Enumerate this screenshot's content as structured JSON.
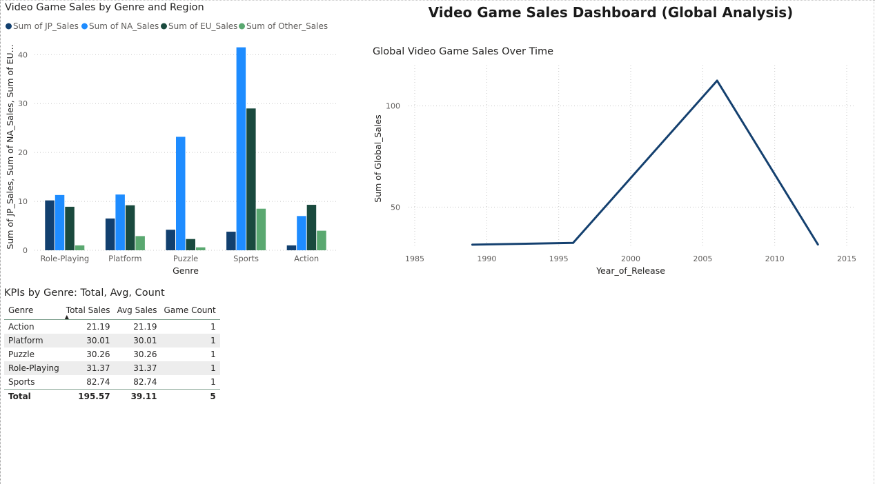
{
  "dashboard": {
    "title": "Video Game Sales Dashboard (Global Analysis)"
  },
  "chart_data": [
    {
      "type": "bar",
      "title": "Video Game Sales by Genre and Region",
      "xlabel": "Genre",
      "ylabel": "Sum of JP_Sales, Sum of NA_Sales, Sum of EU...",
      "categories": [
        "Role-Playing",
        "Platform",
        "Puzzle",
        "Sports",
        "Action"
      ],
      "series": [
        {
          "name": "Sum of JP_Sales",
          "color": "#12406f",
          "values": [
            10.2,
            6.5,
            4.2,
            3.8,
            1.0
          ]
        },
        {
          "name": "Sum of NA_Sales",
          "color": "#1e8cff",
          "values": [
            11.3,
            11.4,
            23.2,
            41.5,
            7.0
          ]
        },
        {
          "name": "Sum of EU_Sales",
          "color": "#1a4a3e",
          "values": [
            8.9,
            9.2,
            2.3,
            29.0,
            9.3
          ]
        },
        {
          "name": "Sum of Other_Sales",
          "color": "#5aa870",
          "values": [
            1.0,
            2.9,
            0.6,
            8.5,
            4.0
          ]
        }
      ],
      "ylim": [
        0,
        43
      ],
      "yticks": [
        0,
        10,
        20,
        30,
        40
      ],
      "grid": true,
      "legend": "top-left"
    },
    {
      "type": "line",
      "title": "Global Video Game Sales Over Time",
      "xlabel": "Year_of_Release",
      "ylabel": "Sum of Global_Sales",
      "x": [
        1989,
        1996,
        2006,
        2013
      ],
      "y": [
        31.4,
        32.3,
        112.5,
        31.5
      ],
      "xlim": [
        1985,
        2015
      ],
      "ylim": [
        30,
        120
      ],
      "xticks": [
        1985,
        1990,
        1995,
        2000,
        2005,
        2010,
        2015
      ],
      "yticks": [
        50,
        100
      ],
      "color": "#14406f",
      "grid": true
    }
  ],
  "kpi": {
    "title": "KPIs by Genre: Total, Avg, Count",
    "columns": [
      "Genre",
      "Total Sales",
      "Avg Sales",
      "Game Count"
    ],
    "rows": [
      [
        "Action",
        "21.19",
        "21.19",
        "1"
      ],
      [
        "Platform",
        "30.01",
        "30.01",
        "1"
      ],
      [
        "Puzzle",
        "30.26",
        "30.26",
        "1"
      ],
      [
        "Role-Playing",
        "31.37",
        "31.37",
        "1"
      ],
      [
        "Sports",
        "82.74",
        "82.74",
        "1"
      ]
    ],
    "total": [
      "Total",
      "195.57",
      "39.11",
      "5"
    ]
  }
}
